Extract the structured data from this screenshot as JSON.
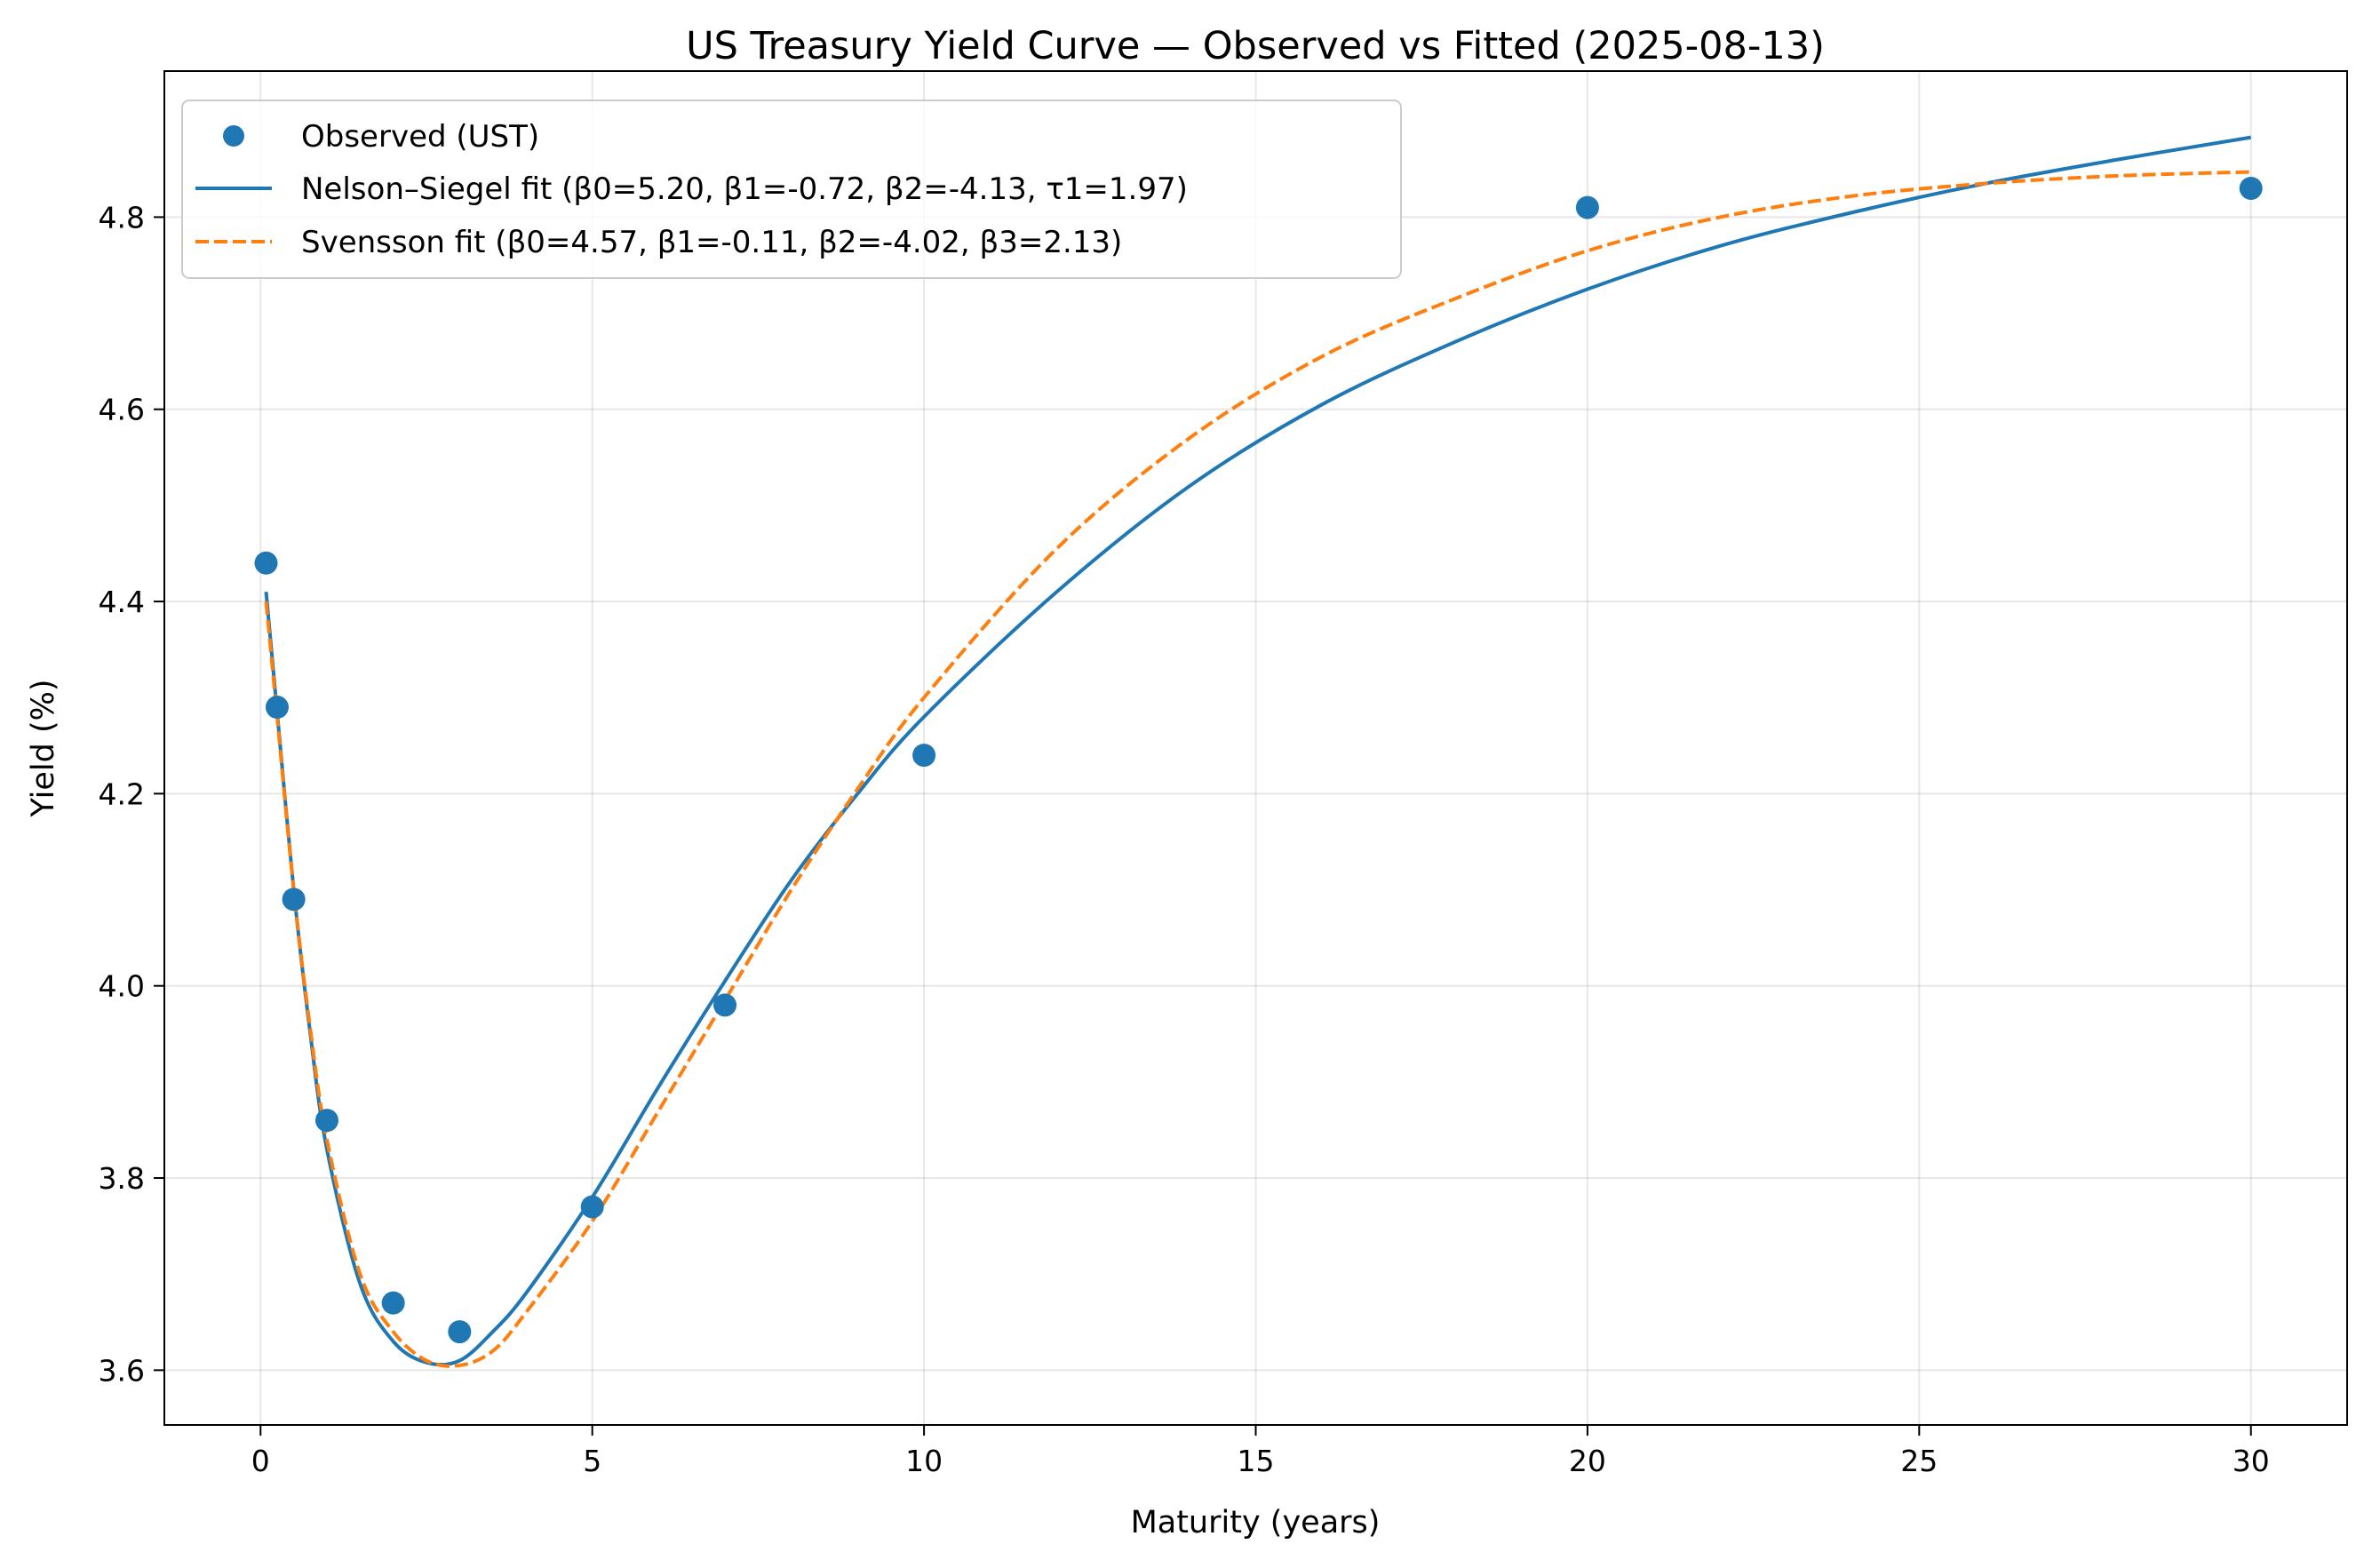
{
  "chart_data": {
    "type": "scatter",
    "title": "US Treasury Yield Curve — Observed vs Fitted  (2025-08-13)",
    "xlabel": "Maturity (years)",
    "ylabel": "Yield (%)",
    "xlim": [
      -1.45,
      31.45
    ],
    "ylim": [
      3.543,
      4.952
    ],
    "xticks": [
      0,
      5,
      10,
      15,
      20,
      25,
      30
    ],
    "yticks": [
      3.6,
      3.8,
      4.0,
      4.2,
      4.4,
      4.6,
      4.8
    ],
    "grid": true,
    "legend_position": "top-left",
    "series": [
      {
        "name": "Observed (UST)",
        "kind": "scatter",
        "color": "#1f77b4",
        "x": [
          0.0833,
          0.25,
          0.5,
          1,
          2,
          3,
          5,
          7,
          10,
          20,
          30
        ],
        "y": [
          4.44,
          4.29,
          4.09,
          3.86,
          3.67,
          3.64,
          3.77,
          3.98,
          4.24,
          4.81,
          4.83
        ]
      },
      {
        "name": "Nelson–Siegel fit (β0=5.20, β1=-0.72, β2=-4.13, τ1=1.97)",
        "kind": "line",
        "color": "#1f77b4",
        "dash": "solid",
        "x": [
          0.0833,
          0.25,
          0.5,
          0.75,
          1,
          1.5,
          2,
          2.5,
          3,
          3.5,
          4,
          5,
          6,
          7,
          8,
          9,
          10,
          12,
          14,
          16,
          18,
          20,
          22,
          24,
          26,
          28,
          30
        ],
        "y": [
          4.41,
          4.285,
          4.1,
          3.95,
          3.83,
          3.69,
          3.63,
          3.608,
          3.61,
          3.64,
          3.68,
          3.78,
          3.895,
          4.005,
          4.11,
          4.2,
          4.28,
          4.41,
          4.52,
          4.605,
          4.67,
          4.725,
          4.77,
          4.805,
          4.835,
          4.86,
          4.883
        ]
      },
      {
        "name": "Svensson fit (β0=4.57, β1=-0.11, β2=-4.02, β3=2.13)",
        "kind": "line",
        "color": "#ff7f0e",
        "dash": "dashed",
        "x": [
          0.0833,
          0.25,
          0.5,
          0.75,
          1,
          1.5,
          2,
          2.5,
          3,
          3.5,
          4,
          5,
          6,
          7,
          8,
          9,
          10,
          12,
          14,
          16,
          18,
          20,
          22,
          24,
          26,
          28,
          30
        ],
        "y": [
          4.4,
          4.28,
          4.1,
          3.955,
          3.84,
          3.7,
          3.64,
          3.61,
          3.605,
          3.62,
          3.66,
          3.755,
          3.87,
          3.985,
          4.1,
          4.205,
          4.3,
          4.455,
          4.57,
          4.655,
          4.715,
          4.765,
          4.8,
          4.822,
          4.835,
          4.843,
          4.847
        ]
      }
    ]
  }
}
